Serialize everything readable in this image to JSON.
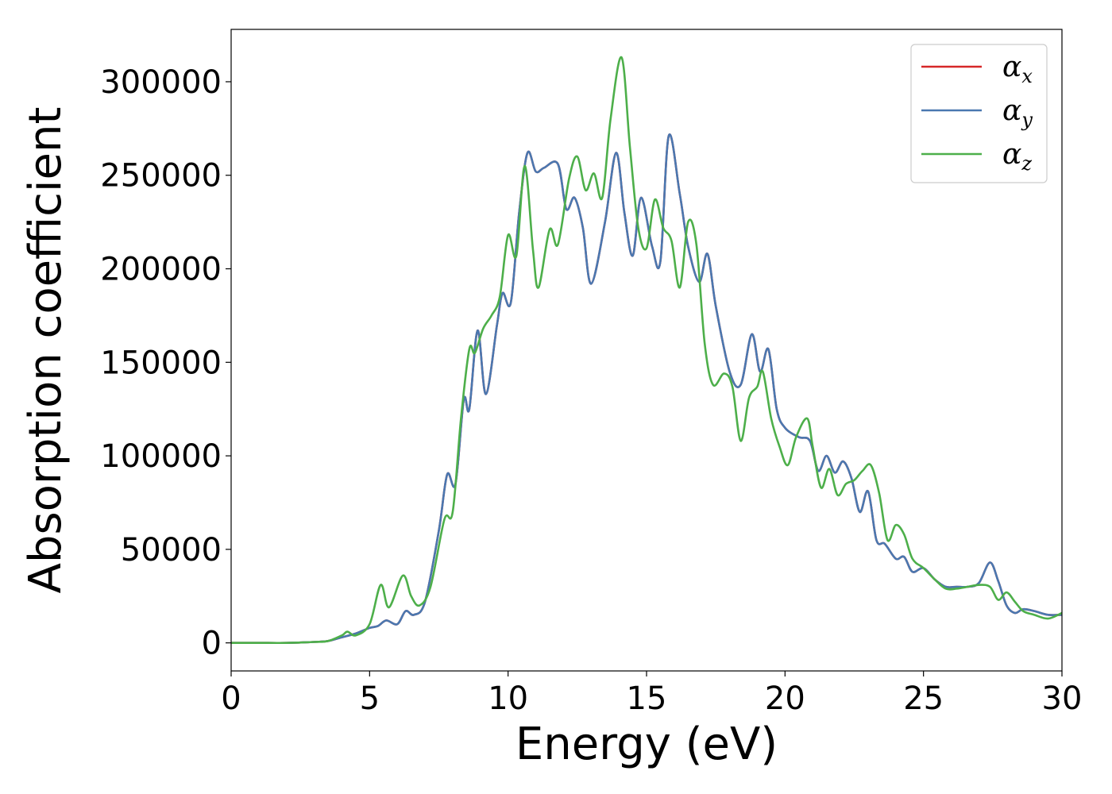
{
  "chart_data": {
    "type": "line",
    "xlabel": "Energy (eV)",
    "ylabel": "Absorption coefficient",
    "xlim": [
      0,
      30
    ],
    "ylim": [
      -15000,
      328000
    ],
    "xticks": [
      0,
      5,
      10,
      15,
      20,
      25,
      30
    ],
    "yticks": [
      0,
      50000,
      100000,
      150000,
      200000,
      250000,
      300000
    ],
    "grid": false,
    "legend_position": "top-right",
    "colors": {
      "alpha_x": "#d62728",
      "alpha_y": "#4a78b0",
      "alpha_z": "#4daf4a"
    },
    "series": [
      {
        "name": "αx",
        "legend_base": "α",
        "legend_sub": "x",
        "color": "#d62728",
        "x": [
          0,
          1,
          2,
          3,
          3.5,
          4,
          4.5,
          5,
          5.3,
          5.6,
          6,
          6.3,
          6.6,
          7,
          7.5,
          7.8,
          8.1,
          8.4,
          8.6,
          8.9,
          9.2,
          9.6,
          9.8,
          10.1,
          10.4,
          10.7,
          11,
          11.3,
          11.8,
          12.1,
          12.4,
          12.7,
          13,
          13.5,
          13.9,
          14.2,
          14.5,
          14.8,
          15.2,
          15.5,
          15.8,
          16.2,
          16.5,
          16.9,
          17.2,
          17.5,
          18,
          18.4,
          18.8,
          19.1,
          19.4,
          19.7,
          20,
          20.5,
          20.9,
          21.2,
          21.5,
          21.8,
          22.1,
          22.4,
          22.7,
          23,
          23.3,
          23.6,
          24,
          24.3,
          24.6,
          25,
          25.4,
          25.8,
          26.2,
          26.6,
          27,
          27.4,
          27.7,
          28,
          28.3,
          28.6,
          29,
          29.5,
          30
        ],
        "y": [
          0,
          0,
          0,
          500,
          1000,
          3000,
          5000,
          8000,
          9000,
          12000,
          10000,
          17000,
          15000,
          22000,
          60000,
          90000,
          85000,
          130000,
          125000,
          167000,
          133000,
          170000,
          187000,
          182000,
          230000,
          262000,
          252000,
          254000,
          256000,
          232000,
          238000,
          222000,
          192000,
          225000,
          262000,
          230000,
          207000,
          238000,
          212000,
          204000,
          271000,
          240000,
          212000,
          193000,
          208000,
          180000,
          145000,
          138000,
          165000,
          145000,
          157000,
          125000,
          115000,
          110000,
          108000,
          92000,
          100000,
          91000,
          97000,
          88000,
          70000,
          81000,
          55000,
          53000,
          45000,
          46000,
          38000,
          40000,
          34000,
          30000,
          30000,
          30000,
          32000,
          43000,
          33000,
          20000,
          16000,
          18000,
          17000,
          15000,
          15000
        ]
      },
      {
        "name": "αy",
        "legend_base": "α",
        "legend_sub": "y",
        "color": "#4a78b0",
        "x": [
          0,
          1,
          2,
          3,
          3.5,
          4,
          4.5,
          5,
          5.3,
          5.6,
          6,
          6.3,
          6.6,
          7,
          7.5,
          7.8,
          8.1,
          8.4,
          8.6,
          8.9,
          9.2,
          9.6,
          9.8,
          10.1,
          10.4,
          10.7,
          11,
          11.3,
          11.8,
          12.1,
          12.4,
          12.7,
          13,
          13.5,
          13.9,
          14.2,
          14.5,
          14.8,
          15.2,
          15.5,
          15.8,
          16.2,
          16.5,
          16.9,
          17.2,
          17.5,
          18,
          18.4,
          18.8,
          19.1,
          19.4,
          19.7,
          20,
          20.5,
          20.9,
          21.2,
          21.5,
          21.8,
          22.1,
          22.4,
          22.7,
          23,
          23.3,
          23.6,
          24,
          24.3,
          24.6,
          25,
          25.4,
          25.8,
          26.2,
          26.6,
          27,
          27.4,
          27.7,
          28,
          28.3,
          28.6,
          29,
          29.5,
          30
        ],
        "y": [
          0,
          0,
          0,
          500,
          1000,
          3000,
          5000,
          8000,
          9000,
          12000,
          10000,
          17000,
          15000,
          22000,
          60000,
          90000,
          85000,
          130000,
          125000,
          167000,
          133000,
          170000,
          187000,
          182000,
          230000,
          262000,
          252000,
          254000,
          256000,
          232000,
          238000,
          222000,
          192000,
          225000,
          262000,
          230000,
          207000,
          238000,
          212000,
          204000,
          271000,
          240000,
          212000,
          193000,
          208000,
          180000,
          145000,
          138000,
          165000,
          145000,
          157000,
          125000,
          115000,
          110000,
          108000,
          92000,
          100000,
          91000,
          97000,
          88000,
          70000,
          81000,
          55000,
          53000,
          45000,
          46000,
          38000,
          40000,
          34000,
          30000,
          30000,
          30000,
          32000,
          43000,
          33000,
          20000,
          16000,
          18000,
          17000,
          15000,
          15000
        ]
      },
      {
        "name": "αz",
        "legend_base": "α",
        "legend_sub": "z",
        "color": "#4daf4a",
        "x": [
          0,
          1,
          2,
          3,
          3.5,
          4,
          4.2,
          4.5,
          5,
          5.4,
          5.7,
          6.2,
          6.5,
          6.8,
          7.2,
          7.7,
          8,
          8.3,
          8.6,
          8.8,
          9.1,
          9.4,
          9.7,
          10,
          10.3,
          10.6,
          10.9,
          11.1,
          11.5,
          11.8,
          12.2,
          12.5,
          12.8,
          13.1,
          13.4,
          13.7,
          14.1,
          14.4,
          14.7,
          15,
          15.3,
          15.6,
          15.9,
          16.2,
          16.5,
          16.8,
          17.1,
          17.4,
          17.8,
          18.1,
          18.4,
          18.7,
          19,
          19.2,
          19.5,
          19.8,
          20.1,
          20.4,
          20.8,
          21,
          21.3,
          21.6,
          21.9,
          22.2,
          22.5,
          22.8,
          23.1,
          23.4,
          23.7,
          24,
          24.3,
          24.6,
          25,
          25.4,
          25.8,
          26.2,
          26.6,
          27,
          27.4,
          27.7,
          28,
          28.3,
          28.6,
          29,
          29.5,
          30
        ],
        "y": [
          0,
          0,
          0,
          500,
          1000,
          4000,
          6000,
          4000,
          10000,
          31000,
          19000,
          36000,
          25000,
          20000,
          30000,
          66000,
          70000,
          120000,
          157000,
          155000,
          168000,
          175000,
          185000,
          218000,
          207000,
          255000,
          210000,
          190000,
          221000,
          213000,
          248000,
          260000,
          242000,
          251000,
          238000,
          280000,
          313000,
          265000,
          222000,
          211000,
          237000,
          222000,
          215000,
          190000,
          225000,
          213000,
          160000,
          138000,
          144000,
          137000,
          108000,
          131000,
          137000,
          145000,
          120000,
          105000,
          95000,
          110000,
          120000,
          105000,
          83000,
          93000,
          79000,
          85000,
          87000,
          92000,
          95000,
          80000,
          55000,
          63000,
          58000,
          45000,
          40000,
          34000,
          29000,
          29000,
          30000,
          31000,
          30000,
          23000,
          27000,
          22000,
          17000,
          15000,
          13000,
          16000
        ]
      }
    ]
  }
}
